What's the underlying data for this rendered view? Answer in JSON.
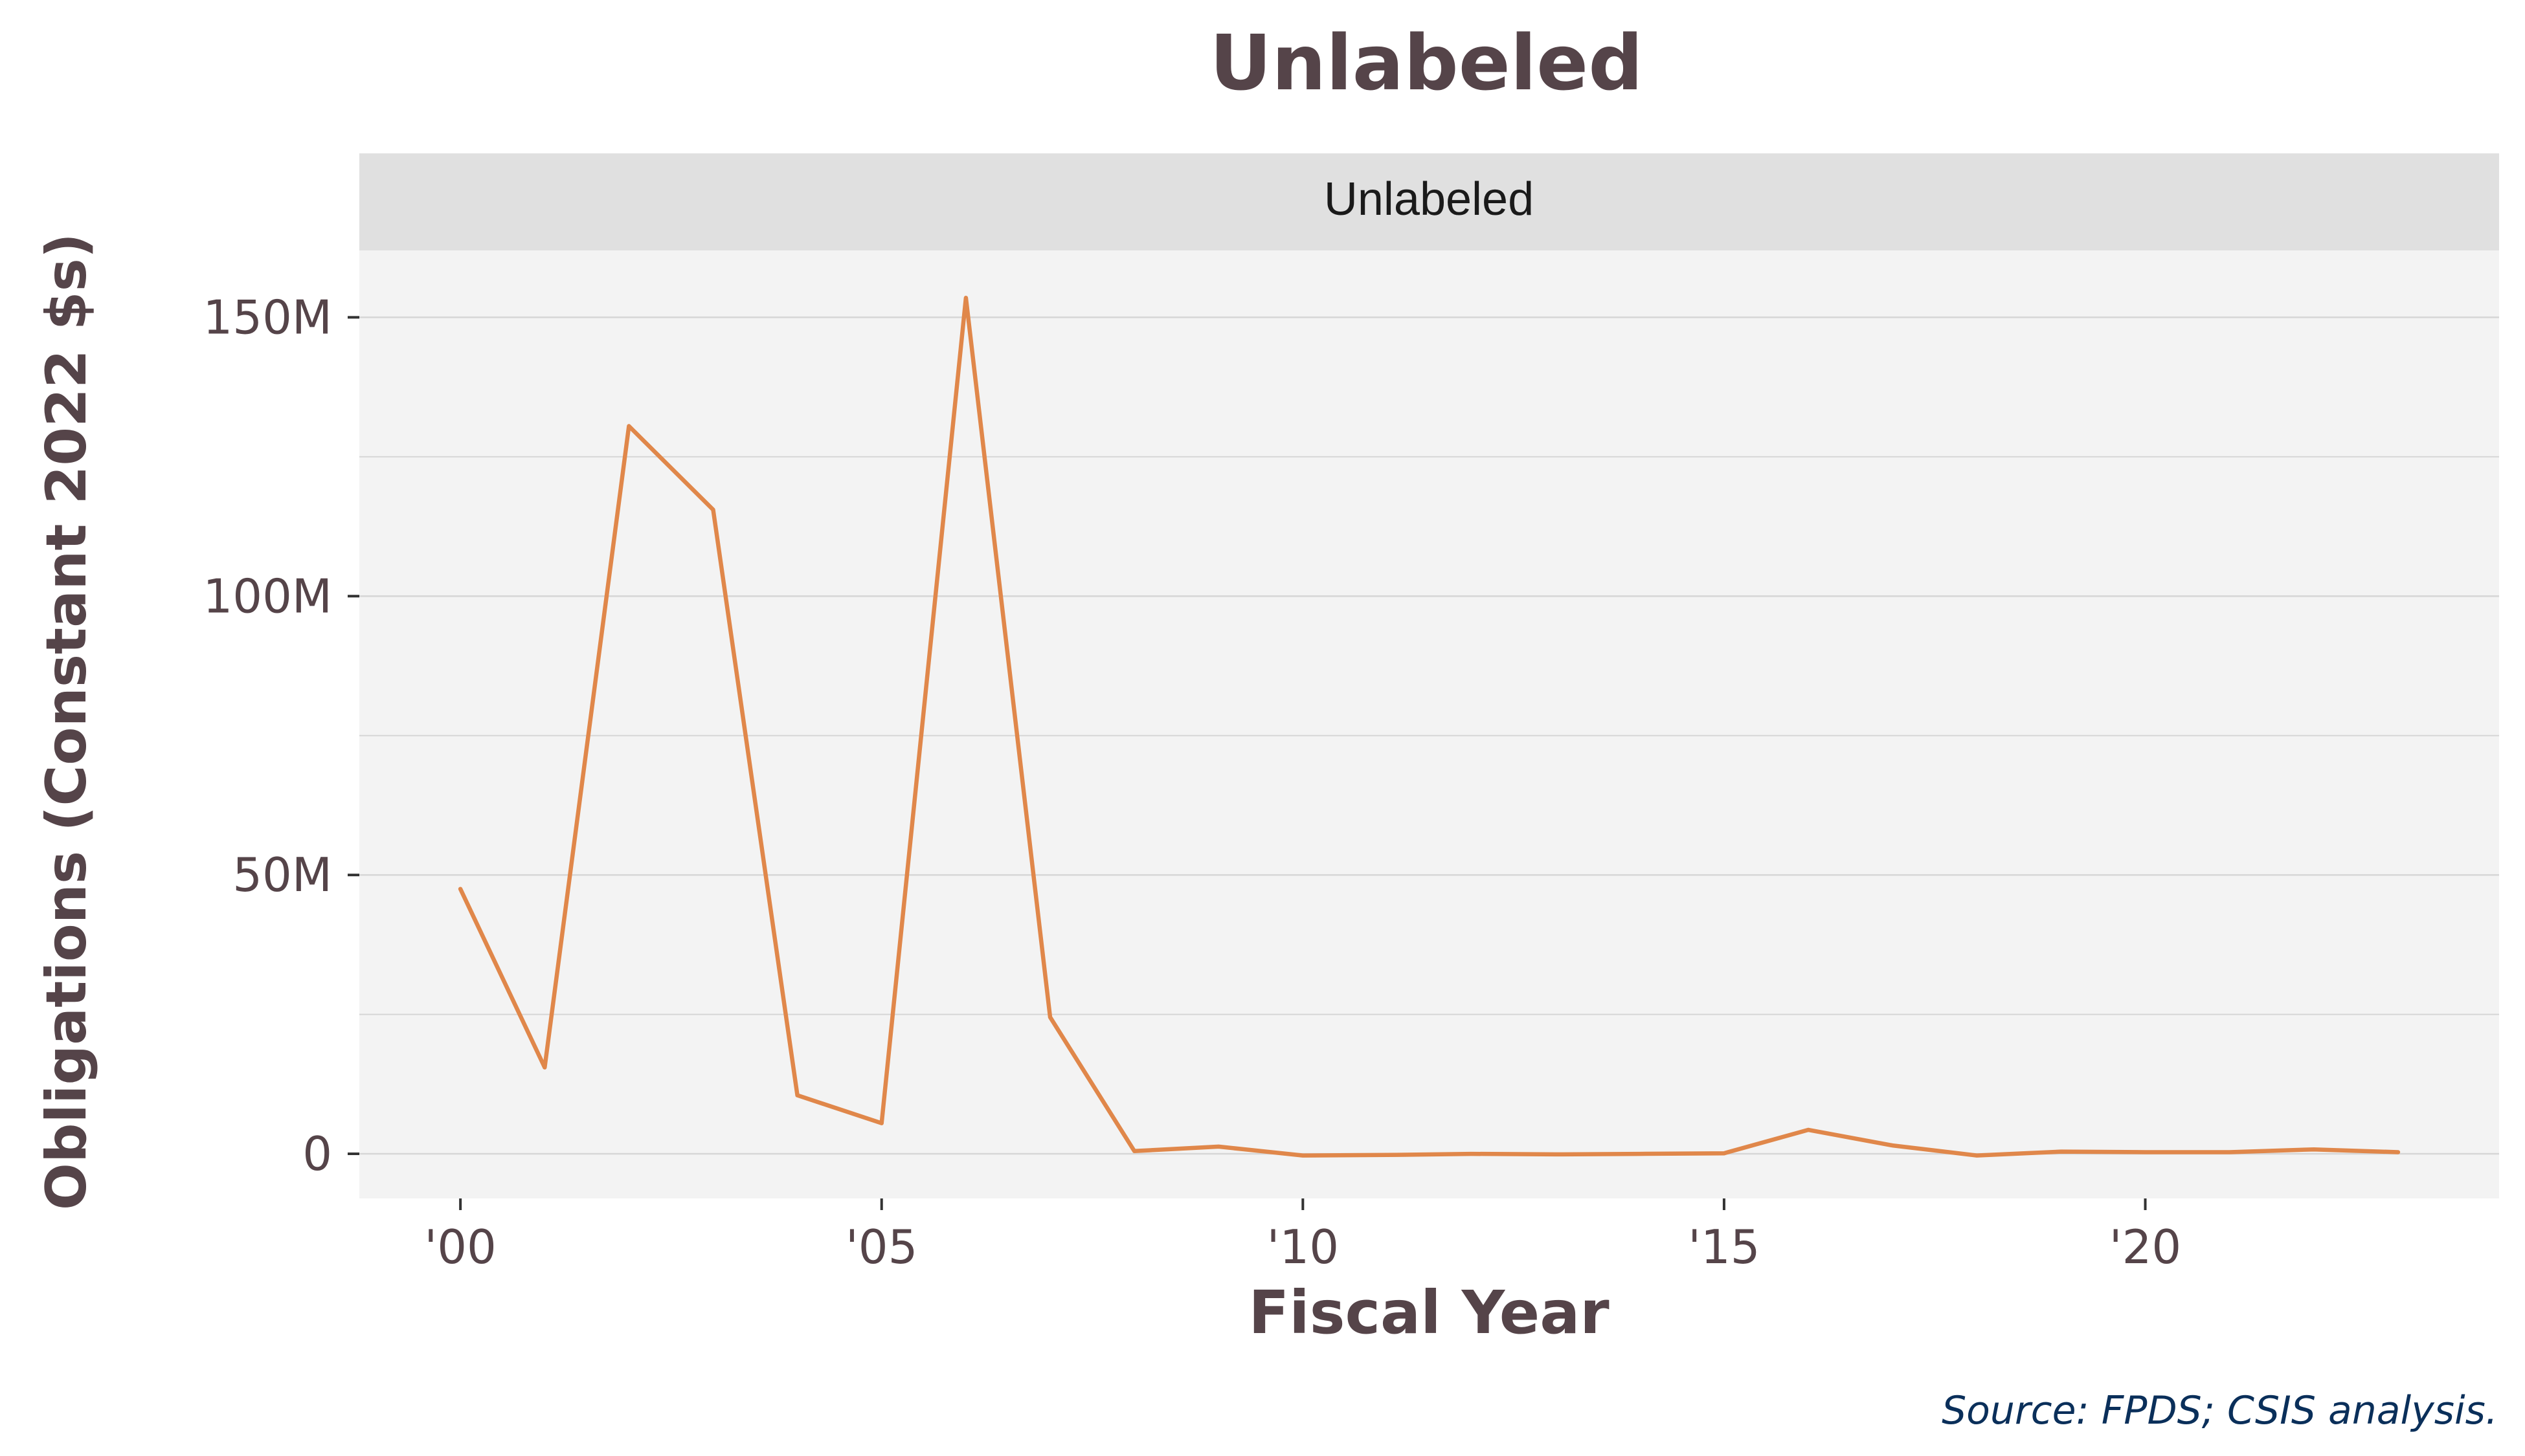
{
  "chart_data": {
    "type": "line",
    "title": "Unlabeled",
    "facet_label": "Unlabeled",
    "xlabel": "Fiscal Year",
    "ylabel": "Obligations (Constant 2022 $s)",
    "caption": "Source: FPDS; CSIS analysis.",
    "xlim": [
      1998.8,
      2024.2
    ],
    "ylim": [
      -8000000,
      162000000
    ],
    "x_ticks": [
      {
        "value": 2000,
        "label": "'00"
      },
      {
        "value": 2005,
        "label": "'05"
      },
      {
        "value": 2010,
        "label": "'10"
      },
      {
        "value": 2015,
        "label": "'15"
      },
      {
        "value": 2020,
        "label": "'20"
      }
    ],
    "y_ticks": [
      {
        "value": 0,
        "label": "0"
      },
      {
        "value": 50000000,
        "label": "50M"
      },
      {
        "value": 100000000,
        "label": "100M"
      },
      {
        "value": 150000000,
        "label": "150M"
      }
    ],
    "y_minor": [
      25000000,
      75000000,
      125000000
    ],
    "grid": true,
    "legend": "none",
    "colors": {
      "line": "#E0874A",
      "panel": "#F3F3F3",
      "strip": "#E0E0E0",
      "grid": "#D6D6D6",
      "text": "#554449",
      "caption": "#0A2F5A"
    },
    "series": [
      {
        "x": [
          2000,
          2001,
          2002,
          2003,
          2004,
          2005,
          2006,
          2007,
          2008,
          2009,
          2010,
          2011,
          2012,
          2013,
          2014,
          2015,
          2016,
          2017,
          2018,
          2019,
          2020,
          2021,
          2022,
          2023
        ],
        "values": [
          47500000,
          15500000,
          130500000,
          115500000,
          10500000,
          5500000,
          153500000,
          24500000,
          500000,
          1300000,
          -300000,
          -200000,
          0,
          -100000,
          0,
          100000,
          4300000,
          1500000,
          -300000,
          400000,
          300000,
          300000,
          800000,
          300000
        ]
      }
    ]
  }
}
